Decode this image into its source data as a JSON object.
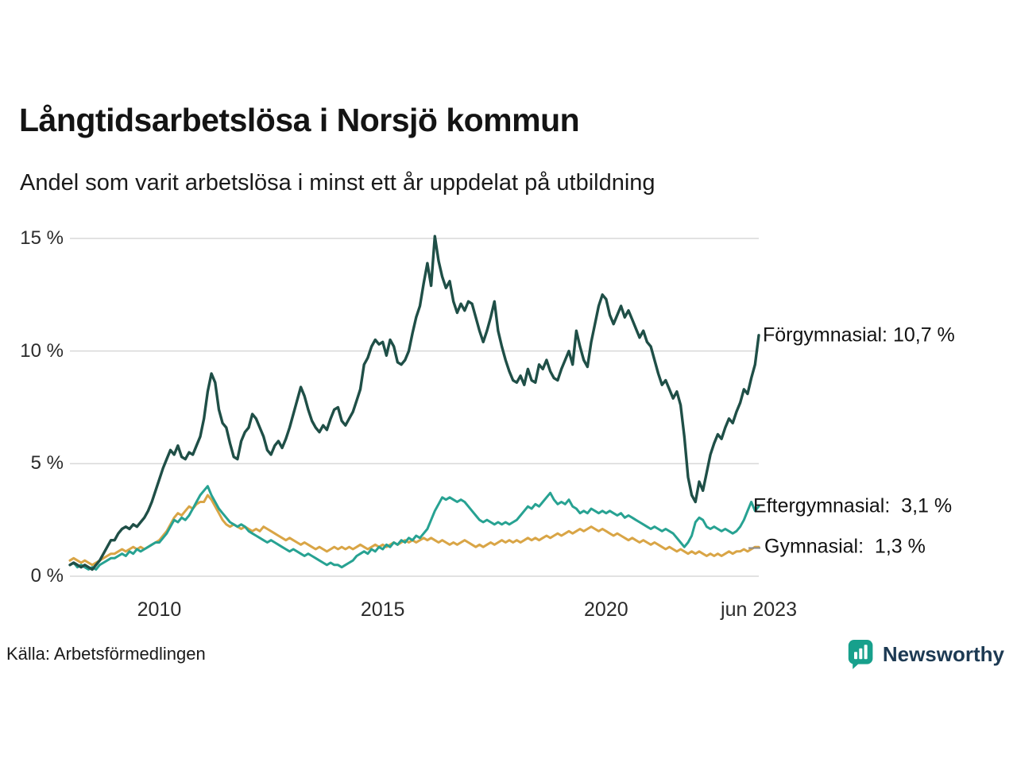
{
  "title": "Långtidsarbetslösa i Norsjö kommun",
  "subtitle": "Andel som varit arbetslösa i minst ett år uppdelat på utbildning",
  "source": "Källa: Arbetsförmedlingen",
  "brand": {
    "name": "Newsworthy",
    "icon": "bar-chart-badge-icon",
    "icon_color": "#17a08c",
    "text_color": "#1d3a53"
  },
  "colors": {
    "grid": "#d9d9d9",
    "forgymnasial": "#1f4f47",
    "eftergymnasial": "#27a292",
    "gymnasial": "#d9a546",
    "background": "#ffffff"
  },
  "chart_data": {
    "type": "line",
    "title": "Långtidsarbetslösa i Norsjö kommun",
    "subtitle": "Andel som varit arbetslösa i minst ett år uppdelat på utbildning",
    "unit": "%",
    "ylim": [
      0,
      15
    ],
    "grid": true,
    "legend_position": "right-end-labels",
    "x_interval": "monthly",
    "x_start": 2008.0,
    "x_end_label": "jun 2023",
    "y_ticks": [
      {
        "value": 0,
        "label": "0 %"
      },
      {
        "value": 5,
        "label": "5 %"
      },
      {
        "value": 10,
        "label": "10 %"
      },
      {
        "value": 15,
        "label": "15 %"
      }
    ],
    "x_ticks": [
      {
        "position": 2010,
        "label": "2010"
      },
      {
        "position": 2015,
        "label": "2015"
      },
      {
        "position": 2020,
        "label": "2020"
      },
      {
        "position": 2023.417,
        "label": "jun 2023"
      }
    ],
    "series": [
      {
        "key": "forgymnasial",
        "name": "Förgymnasial",
        "color": "#1f4f47",
        "last_value": 10.7,
        "end_label": "Förgymnasial: 10,7 %",
        "values": [
          0.5,
          0.6,
          0.5,
          0.4,
          0.5,
          0.4,
          0.3,
          0.5,
          0.7,
          1.0,
          1.3,
          1.6,
          1.6,
          1.9,
          2.1,
          2.2,
          2.1,
          2.3,
          2.2,
          2.4,
          2.6,
          2.9,
          3.3,
          3.8,
          4.3,
          4.8,
          5.2,
          5.6,
          5.4,
          5.8,
          5.3,
          5.2,
          5.5,
          5.4,
          5.8,
          6.2,
          7.0,
          8.2,
          9.0,
          8.6,
          7.4,
          6.8,
          6.6,
          5.9,
          5.3,
          5.2,
          6.0,
          6.4,
          6.6,
          7.2,
          7.0,
          6.6,
          6.2,
          5.6,
          5.4,
          5.8,
          6.0,
          5.7,
          6.1,
          6.6,
          7.2,
          7.8,
          8.4,
          8.0,
          7.4,
          6.9,
          6.6,
          6.4,
          6.7,
          6.5,
          7.0,
          7.4,
          7.5,
          6.9,
          6.7,
          7.0,
          7.3,
          7.8,
          8.3,
          9.4,
          9.7,
          10.2,
          10.5,
          10.3,
          10.4,
          9.8,
          10.5,
          10.2,
          9.5,
          9.4,
          9.6,
          10.0,
          10.8,
          11.5,
          12.0,
          13.0,
          13.9,
          12.9,
          15.1,
          14.0,
          13.3,
          12.8,
          13.1,
          12.2,
          11.7,
          12.1,
          11.8,
          12.2,
          12.1,
          11.5,
          10.9,
          10.4,
          10.9,
          11.5,
          12.2,
          10.9,
          10.2,
          9.6,
          9.1,
          8.7,
          8.6,
          8.9,
          8.5,
          9.2,
          8.7,
          8.6,
          9.4,
          9.2,
          9.6,
          9.1,
          8.8,
          8.7,
          9.2,
          9.6,
          10.0,
          9.4,
          10.9,
          10.2,
          9.6,
          9.3,
          10.4,
          11.2,
          12.0,
          12.5,
          12.3,
          11.6,
          11.2,
          11.6,
          12.0,
          11.5,
          11.8,
          11.4,
          11.0,
          10.6,
          10.9,
          10.4,
          10.2,
          9.6,
          9.0,
          8.5,
          8.7,
          8.3,
          7.9,
          8.2,
          7.6,
          6.2,
          4.4,
          3.6,
          3.3,
          4.2,
          3.8,
          4.6,
          5.4,
          5.9,
          6.3,
          6.1,
          6.6,
          7.0,
          6.8,
          7.3,
          7.7,
          8.3,
          8.1,
          8.8,
          9.4,
          10.7
        ]
      },
      {
        "key": "eftergymnasial",
        "name": "Eftergymnasial",
        "color": "#27a292",
        "last_value": 3.1,
        "end_label": "Eftergymnasial:  3,1 %",
        "values": [
          0.5,
          0.6,
          0.4,
          0.5,
          0.4,
          0.3,
          0.4,
          0.3,
          0.5,
          0.6,
          0.7,
          0.8,
          0.8,
          0.9,
          1.0,
          0.9,
          1.1,
          1.0,
          1.2,
          1.1,
          1.2,
          1.3,
          1.4,
          1.5,
          1.5,
          1.7,
          1.9,
          2.2,
          2.5,
          2.4,
          2.6,
          2.5,
          2.7,
          3.0,
          3.3,
          3.6,
          3.8,
          4.0,
          3.6,
          3.3,
          3.0,
          2.8,
          2.6,
          2.4,
          2.3,
          2.2,
          2.3,
          2.2,
          2.0,
          1.9,
          1.8,
          1.7,
          1.6,
          1.5,
          1.6,
          1.5,
          1.4,
          1.3,
          1.2,
          1.1,
          1.2,
          1.1,
          1.0,
          0.9,
          1.0,
          0.9,
          0.8,
          0.7,
          0.6,
          0.5,
          0.6,
          0.5,
          0.5,
          0.4,
          0.5,
          0.6,
          0.7,
          0.9,
          1.0,
          1.1,
          1.0,
          1.2,
          1.1,
          1.3,
          1.2,
          1.4,
          1.3,
          1.5,
          1.4,
          1.6,
          1.5,
          1.7,
          1.6,
          1.8,
          1.7,
          1.9,
          2.1,
          2.5,
          2.9,
          3.2,
          3.5,
          3.4,
          3.5,
          3.4,
          3.3,
          3.4,
          3.3,
          3.1,
          2.9,
          2.7,
          2.5,
          2.4,
          2.5,
          2.4,
          2.3,
          2.4,
          2.3,
          2.4,
          2.3,
          2.4,
          2.5,
          2.7,
          2.9,
          3.1,
          3.0,
          3.2,
          3.1,
          3.3,
          3.5,
          3.7,
          3.4,
          3.2,
          3.3,
          3.2,
          3.4,
          3.1,
          3.0,
          2.8,
          2.9,
          2.8,
          3.0,
          2.9,
          2.8,
          2.9,
          2.8,
          2.9,
          2.8,
          2.7,
          2.8,
          2.6,
          2.7,
          2.6,
          2.5,
          2.4,
          2.3,
          2.2,
          2.1,
          2.2,
          2.1,
          2.0,
          2.1,
          2.0,
          1.9,
          1.7,
          1.5,
          1.3,
          1.5,
          1.8,
          2.4,
          2.6,
          2.5,
          2.2,
          2.1,
          2.2,
          2.1,
          2.0,
          2.1,
          2.0,
          1.9,
          2.0,
          2.2,
          2.5,
          2.9,
          3.3,
          2.9,
          3.1
        ]
      },
      {
        "key": "gymnasial",
        "name": "Gymnasial",
        "color": "#d9a546",
        "last_value": 1.3,
        "end_label": "Gymnasial:  1,3 %",
        "values": [
          0.7,
          0.8,
          0.7,
          0.6,
          0.7,
          0.6,
          0.5,
          0.6,
          0.7,
          0.8,
          0.9,
          1.0,
          1.0,
          1.1,
          1.2,
          1.1,
          1.2,
          1.3,
          1.2,
          1.3,
          1.2,
          1.3,
          1.4,
          1.5,
          1.6,
          1.8,
          2.0,
          2.3,
          2.6,
          2.8,
          2.7,
          2.9,
          3.1,
          3.0,
          3.2,
          3.3,
          3.3,
          3.6,
          3.4,
          3.1,
          2.8,
          2.5,
          2.3,
          2.2,
          2.3,
          2.2,
          2.1,
          2.2,
          2.1,
          2.0,
          2.1,
          2.0,
          2.2,
          2.1,
          2.0,
          1.9,
          1.8,
          1.7,
          1.6,
          1.7,
          1.6,
          1.5,
          1.4,
          1.5,
          1.4,
          1.3,
          1.2,
          1.3,
          1.2,
          1.1,
          1.2,
          1.3,
          1.2,
          1.3,
          1.2,
          1.3,
          1.2,
          1.3,
          1.4,
          1.3,
          1.2,
          1.3,
          1.4,
          1.3,
          1.4,
          1.3,
          1.4,
          1.5,
          1.4,
          1.5,
          1.6,
          1.5,
          1.6,
          1.5,
          1.6,
          1.7,
          1.6,
          1.7,
          1.6,
          1.5,
          1.6,
          1.5,
          1.4,
          1.5,
          1.4,
          1.5,
          1.6,
          1.5,
          1.4,
          1.3,
          1.4,
          1.3,
          1.4,
          1.5,
          1.4,
          1.5,
          1.6,
          1.5,
          1.6,
          1.5,
          1.6,
          1.5,
          1.6,
          1.7,
          1.6,
          1.7,
          1.6,
          1.7,
          1.8,
          1.7,
          1.8,
          1.9,
          1.8,
          1.9,
          2.0,
          1.9,
          2.0,
          2.1,
          2.0,
          2.1,
          2.2,
          2.1,
          2.0,
          2.1,
          2.0,
          1.9,
          1.8,
          1.9,
          1.8,
          1.7,
          1.6,
          1.7,
          1.6,
          1.5,
          1.6,
          1.5,
          1.4,
          1.5,
          1.4,
          1.3,
          1.2,
          1.3,
          1.2,
          1.1,
          1.2,
          1.1,
          1.0,
          1.1,
          1.0,
          1.1,
          1.0,
          0.9,
          1.0,
          0.9,
          1.0,
          0.9,
          1.0,
          1.1,
          1.0,
          1.1,
          1.1,
          1.2,
          1.1,
          1.2,
          1.3,
          1.3
        ]
      }
    ]
  }
}
